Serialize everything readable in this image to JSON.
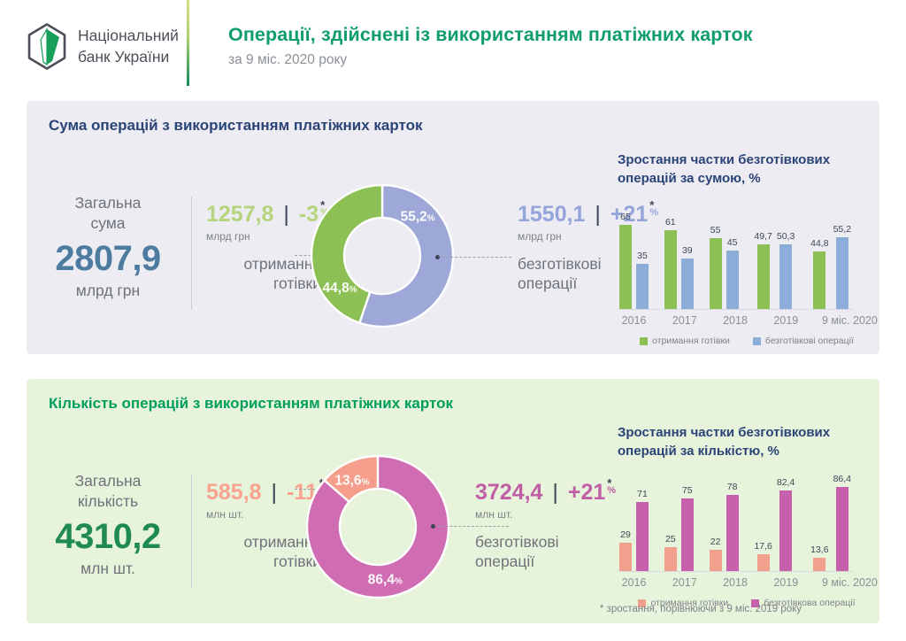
{
  "header": {
    "logo": {
      "line1": "Національний",
      "line2": "банк України"
    },
    "title": "Операції, здійснені із використанням платіжних карток",
    "subtitle": "за 9 міс. 2020 року"
  },
  "footnote": "* зростання, порівнюючи з 9 міс. 2019 року",
  "sum": {
    "panel_title": "Сума операцій з використанням платіжних карток",
    "total": {
      "label_line1": "Загальна",
      "label_line2": "сума",
      "value": "2807,9",
      "unit": "млрд грн"
    },
    "cash": {
      "value": "1257,8",
      "separator": "|",
      "change": "-3",
      "asterisk": "*",
      "percent": "%",
      "unit": "млрд грн",
      "label_line1": "отримання",
      "label_line2": "готівки"
    },
    "cashless": {
      "value": "1550,1",
      "separator": "|",
      "change": "+21",
      "asterisk": "*",
      "percent": "%",
      "unit": "млрд грн",
      "label_line1": "безготівкові",
      "label_line2": "операції"
    }
  },
  "count": {
    "panel_title": "Кількість операцій з використанням платіжних карток",
    "total": {
      "label_line1": "Загальна",
      "label_line2": "кількість",
      "value": "4310,2",
      "unit": "млн шт."
    },
    "cash": {
      "value": "585,8",
      "separator": "|",
      "change": "-11",
      "asterisk": "*",
      "percent": "%",
      "unit": "млн шт.",
      "label_line1": "отримання",
      "label_line2": "готівки"
    },
    "cashless": {
      "value": "3724,4",
      "separator": "|",
      "change": "+21",
      "asterisk": "*",
      "percent": "%",
      "unit": "млн шт.",
      "label_line1": "безготівкові",
      "label_line2": "операції"
    }
  },
  "colors": {
    "green": "#8dc054",
    "green_bar": "#8dc054",
    "blue_donut": "#9ea8d8",
    "blue_bar": "#8badd8",
    "salmon": "#f49e8b",
    "salmon_bar": "#f2a08e",
    "magenta": "#cf6cb2",
    "magenta_bar": "#c760ac",
    "navy": "#2b4478",
    "green_title": "#009e5d",
    "header_green": "#0f9c6e",
    "total_sum_value": "#4d7ca0",
    "total_count_value": "#1f8b50",
    "cash_sum_text": "#b6d47c",
    "cashless_sum_text": "#95a4da",
    "cash_count_text": "#f7a38f",
    "cashless_count_text": "#c05fa6",
    "gray_text": "#6e737b",
    "dark": "#3d4654"
  },
  "chart_data": [
    {
      "id": "donut_sum",
      "type": "pie",
      "subtype": "donut",
      "title": "Сума операцій з використанням платіжних карток — структура, %",
      "slices": [
        {
          "label": "безготівкові операції",
          "value": 55.2,
          "color_key": "blue_donut",
          "label_angle": 42
        },
        {
          "label": "отримання готівки",
          "value": 44.8,
          "color_key": "green",
          "label_angle": 233
        }
      ],
      "start_angle_deg": 0,
      "clockwise": true
    },
    {
      "id": "bar_sum",
      "type": "bar",
      "title": "Зростання частки безготівкових операцій за сумою, %",
      "categories": [
        "2016",
        "2017",
        "2018",
        "2019",
        "9 міс. 2020"
      ],
      "series": [
        {
          "name": "отримання готівки",
          "color_key": "green_bar",
          "values": [
            65,
            61,
            55,
            49.7,
            44.8
          ]
        },
        {
          "name": "безготівкові операції",
          "color_key": "blue_bar",
          "values": [
            35,
            39,
            45,
            50.3,
            55.2
          ]
        }
      ],
      "ylim": [
        0,
        100
      ],
      "grid": false,
      "legend_position": "bottom"
    },
    {
      "id": "donut_count",
      "type": "pie",
      "subtype": "donut",
      "title": "Кількість операцій з використанням платіжних карток — структура, %",
      "slices": [
        {
          "label": "безготівкові операції",
          "value": 86.4,
          "color_key": "magenta",
          "label_angle": 172
        },
        {
          "label": "отримання готівки",
          "value": 13.6,
          "color_key": "salmon",
          "label_angle": 331
        }
      ],
      "start_angle_deg": 0,
      "clockwise": true
    },
    {
      "id": "bar_count",
      "type": "bar",
      "title": "Зростання частки безготівкових операцій за кількістю, %",
      "categories": [
        "2016",
        "2017",
        "2018",
        "2019",
        "9 міс. 2020"
      ],
      "series": [
        {
          "name": "отримання готівки",
          "color_key": "salmon_bar",
          "values": [
            29,
            25,
            22,
            17.6,
            13.6
          ]
        },
        {
          "name": "безготівкова операції",
          "color_key": "magenta_bar",
          "values": [
            71,
            75,
            78,
            82.4,
            86.4
          ]
        }
      ],
      "ylim": [
        0,
        100
      ],
      "grid": false,
      "legend_position": "bottom"
    }
  ]
}
